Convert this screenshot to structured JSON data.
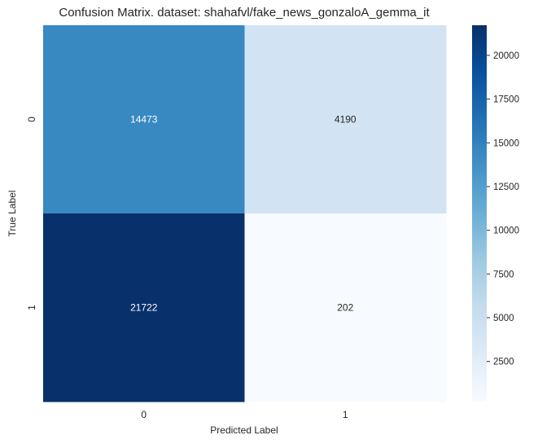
{
  "chart_data": {
    "type": "heatmap",
    "title": "Confusion Matrix. dataset: shahafvl/fake_news_gonzaloA_gemma_it",
    "xlabel": "Predicted Label",
    "ylabel": "True Label",
    "x_categories": [
      "0",
      "1"
    ],
    "y_categories": [
      "0",
      "1"
    ],
    "values": [
      [
        14473,
        4190
      ],
      [
        21722,
        202
      ]
    ],
    "colormap": "Blues",
    "vmin": 202,
    "vmax": 21722,
    "colorbar_ticks": [
      2500,
      5000,
      7500,
      10000,
      12500,
      15000,
      17500,
      20000
    ],
    "grid": false
  }
}
